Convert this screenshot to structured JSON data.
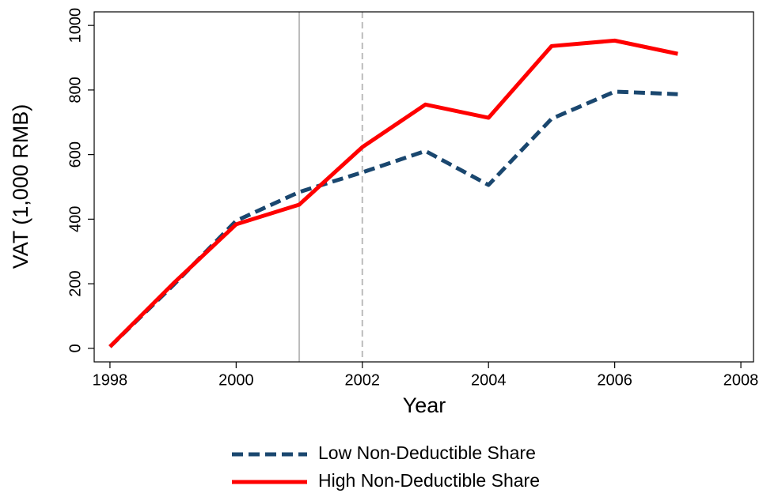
{
  "chart_data": {
    "type": "line",
    "x_label": "Year",
    "y_label": "VAT (1,000 RMB)",
    "x": [
      1998,
      1999,
      2000,
      2001,
      2002,
      2003,
      2004,
      2005,
      2006,
      2007
    ],
    "series": [
      {
        "name": "Low Non-Deductible Share",
        "color": "#1a476f",
        "dash": "dashed",
        "values": [
          5,
          195,
          395,
          484,
          545,
          611,
          506,
          711,
          795,
          787
        ]
      },
      {
        "name": "High Non-Deductible Share",
        "color": "#ff0000",
        "dash": "solid",
        "values": [
          5,
          200,
          384,
          445,
          623,
          755,
          714,
          936,
          953,
          912
        ]
      }
    ],
    "xlim": [
      1997.75,
      2008.2
    ],
    "ylim": [
      -42,
      1042
    ],
    "xticks": [
      1998,
      2000,
      2002,
      2004,
      2006,
      2008
    ],
    "yticks": [
      0,
      200,
      400,
      600,
      800,
      1000
    ],
    "vlines": [
      {
        "x": 2001,
        "style": "solid"
      },
      {
        "x": 2002,
        "style": "dashed"
      }
    ],
    "grid": false,
    "legend_position": "bottom"
  }
}
